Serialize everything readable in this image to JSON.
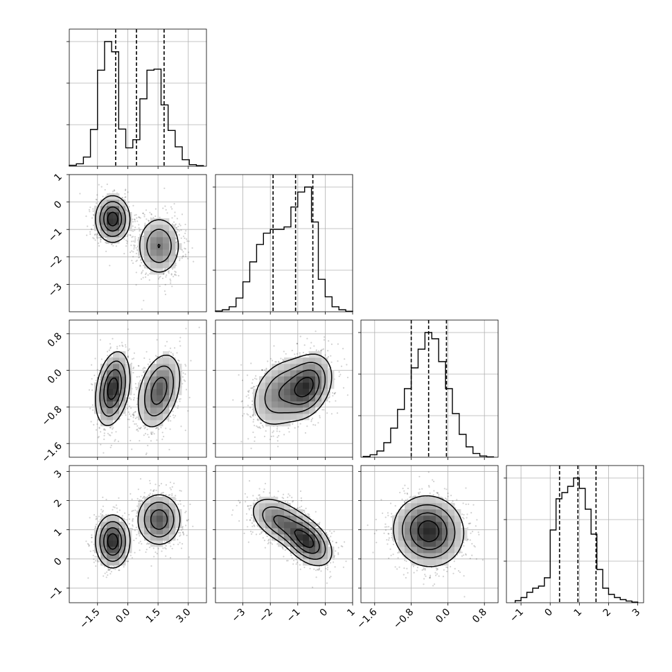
{
  "chart_data": {
    "type": "corner",
    "grid": true,
    "quantile_lines": "dashed",
    "parameters": [
      {
        "range": [
          -2.9,
          3.9
        ],
        "ticks": [
          -1.5,
          0.0,
          1.5,
          3.0
        ],
        "tick_labels": [
          "−1.5",
          "0.0",
          "1.5",
          "3.0"
        ],
        "quantiles": [
          -0.6,
          0.43,
          1.8
        ],
        "histogram": {
          "bin_edges": [
            -2.9,
            -2.55,
            -2.2,
            -1.85,
            -1.5,
            -1.15,
            -0.8,
            -0.45,
            -0.1,
            0.25,
            0.6,
            0.95,
            1.3,
            1.65,
            2.0,
            2.35,
            2.7,
            3.05,
            3.4,
            3.75
          ],
          "counts": [
            5,
            12,
            45,
            180,
            470,
            610,
            560,
            182,
            90,
            130,
            330,
            470,
            475,
            300,
            175,
            95,
            32,
            8,
            3
          ]
        }
      },
      {
        "range": [
          -4.0,
          1.0
        ],
        "ticks": [
          -3,
          -2,
          -1,
          0,
          1
        ],
        "tick_labels": [
          "−3",
          "−2",
          "−1",
          "0",
          "1"
        ],
        "quantiles": [
          -1.9,
          -1.08,
          -0.45
        ],
        "histogram": {
          "bin_edges": [
            -4.0,
            -3.75,
            -3.5,
            -3.25,
            -3.0,
            -2.75,
            -2.5,
            -2.25,
            -2.0,
            -1.75,
            -1.5,
            -1.25,
            -1.0,
            -0.75,
            -0.5,
            -0.25,
            0.0,
            0.25,
            0.5,
            0.75,
            1.0
          ],
          "counts": [
            3,
            8,
            20,
            55,
            120,
            200,
            270,
            315,
            330,
            330,
            340,
            420,
            480,
            500,
            360,
            130,
            60,
            20,
            8,
            2
          ]
        }
      },
      {
        "range": [
          -1.9,
          1.1
        ],
        "ticks": [
          -1.6,
          -0.8,
          0.0,
          0.8
        ],
        "tick_labels": [
          "−1.6",
          "−0.8",
          "0.0",
          "0.8"
        ],
        "quantiles": [
          -0.8,
          -0.42,
          -0.03
        ],
        "histogram": {
          "bin_edges": [
            -1.85,
            -1.7,
            -1.55,
            -1.4,
            -1.25,
            -1.1,
            -0.95,
            -0.8,
            -0.65,
            -0.5,
            -0.35,
            -0.2,
            -0.05,
            0.1,
            0.25,
            0.4,
            0.55,
            0.7,
            0.85,
            1.0
          ],
          "counts": [
            4,
            12,
            30,
            70,
            140,
            230,
            330,
            430,
            520,
            600,
            570,
            460,
            330,
            210,
            110,
            50,
            18,
            6,
            2
          ]
        }
      },
      {
        "range": [
          -1.5,
          3.2
        ],
        "ticks": [
          -1,
          0,
          1,
          2,
          3
        ],
        "tick_labels": [
          "−1",
          "0",
          "1",
          "2",
          "3"
        ],
        "quantiles": [
          0.32,
          0.95,
          1.57
        ],
        "histogram": {
          "bin_edges": [
            -1.2,
            -1.0,
            -0.8,
            -0.6,
            -0.4,
            -0.2,
            0.0,
            0.2,
            0.4,
            0.6,
            0.8,
            1.0,
            1.2,
            1.4,
            1.6,
            1.8,
            2.0,
            2.2,
            2.4,
            2.6,
            2.8,
            3.0
          ],
          "counts": [
            10,
            25,
            50,
            70,
            80,
            120,
            350,
            500,
            530,
            560,
            600,
            550,
            450,
            330,
            160,
            70,
            40,
            25,
            15,
            8,
            3
          ]
        }
      }
    ],
    "pairs": [
      {
        "x": 0,
        "y": 1,
        "components": [
          {
            "mean": [
              -0.75,
              -0.62
            ],
            "sd": [
              0.42,
              0.42
            ],
            "rho": 0.0,
            "weight": 0.5
          },
          {
            "mean": [
              1.55,
              -1.6
            ],
            "sd": [
              0.55,
              0.55
            ],
            "rho": 0.0,
            "weight": 0.5
          }
        ]
      },
      {
        "x": 0,
        "y": 2,
        "components": [
          {
            "mean": [
              -0.75,
              -0.4
            ],
            "sd": [
              0.42,
              0.4
            ],
            "rho": 0.3,
            "weight": 0.5
          },
          {
            "mean": [
              1.55,
              -0.45
            ],
            "sd": [
              0.55,
              0.42
            ],
            "rho": 0.35,
            "weight": 0.5
          }
        ]
      },
      {
        "x": 0,
        "y": 3,
        "components": [
          {
            "mean": [
              -0.75,
              0.6
            ],
            "sd": [
              0.42,
              0.45
            ],
            "rho": 0.0,
            "weight": 0.5
          },
          {
            "mean": [
              1.55,
              1.35
            ],
            "sd": [
              0.55,
              0.45
            ],
            "rho": 0.0,
            "weight": 0.5
          }
        ]
      },
      {
        "x": 1,
        "y": 2,
        "components": [
          {
            "mean": [
              -0.65,
              -0.35
            ],
            "sd": [
              0.45,
              0.35
            ],
            "rho": 0.3,
            "weight": 0.55
          },
          {
            "mean": [
              -1.65,
              -0.5
            ],
            "sd": [
              0.55,
              0.4
            ],
            "rho": 0.3,
            "weight": 0.45
          }
        ]
      },
      {
        "x": 1,
        "y": 3,
        "components": [
          {
            "mean": [
              -0.65,
              0.6
            ],
            "sd": [
              0.45,
              0.42
            ],
            "rho": -0.45,
            "weight": 0.55
          },
          {
            "mean": [
              -1.65,
              1.3
            ],
            "sd": [
              0.55,
              0.42
            ],
            "rho": -0.45,
            "weight": 0.45
          }
        ]
      },
      {
        "x": 2,
        "y": 3,
        "components": [
          {
            "mean": [
              -0.42,
              0.95
            ],
            "sd": [
              0.38,
              0.6
            ],
            "rho": -0.05,
            "weight": 1.0
          }
        ]
      }
    ]
  }
}
